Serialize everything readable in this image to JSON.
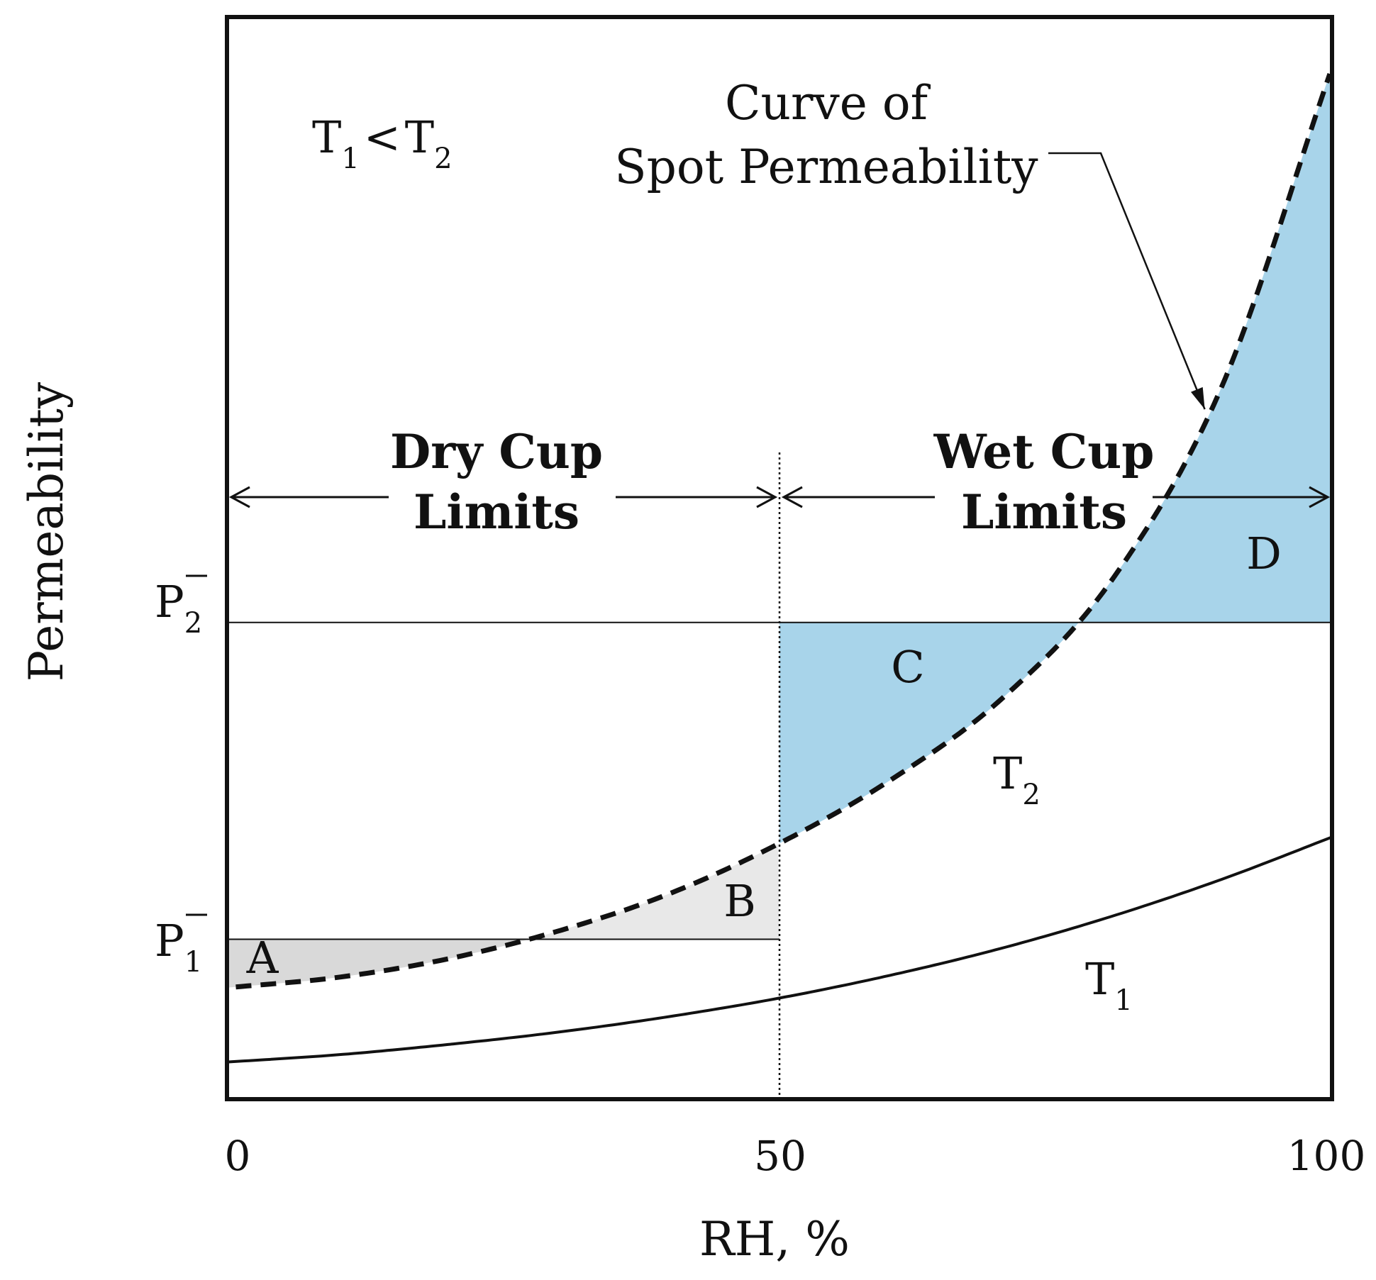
{
  "chart_data": {
    "type": "line",
    "title": "",
    "xlabel": "RH, %",
    "ylabel": "Permeability",
    "xlim": [
      0,
      100
    ],
    "ylim": [
      0,
      1
    ],
    "x_ticks": [
      "0",
      "50",
      "100"
    ],
    "grid": false,
    "condition_label": {
      "main_a": "T",
      "sub_a": "1",
      "op": "<",
      "main_b": "T",
      "sub_b": "2"
    },
    "reference_lines": [
      {
        "name": "P2",
        "letter": "P",
        "sub": "2",
        "value": 0.462
      },
      {
        "name": "P1",
        "letter": "P",
        "sub": "1",
        "value": 0.155
      }
    ],
    "series": [
      {
        "name": "T2",
        "label_main": "T",
        "label_sub": "2",
        "style": "dashed",
        "description": "Curve of Spot Permeability",
        "x": [
          0,
          10,
          20,
          30,
          40,
          50,
          60,
          70,
          80,
          90,
          100
        ],
        "y": [
          0.108,
          0.118,
          0.136,
          0.163,
          0.199,
          0.248,
          0.309,
          0.387,
          0.502,
          0.69,
          1.0
        ]
      },
      {
        "name": "T1",
        "label_main": "T",
        "label_sub": "1",
        "style": "solid",
        "x": [
          0,
          10,
          20,
          30,
          40,
          50,
          60,
          70,
          80,
          90,
          100
        ],
        "y": [
          0.036,
          0.043,
          0.053,
          0.065,
          0.08,
          0.098,
          0.12,
          0.146,
          0.177,
          0.213,
          0.254
        ]
      }
    ],
    "ranges": [
      {
        "name": "dry",
        "line1": "Dry Cup",
        "line2": "Limits",
        "x_start": 0,
        "x_end": 50
      },
      {
        "name": "wet",
        "line1": "Wet Cup",
        "line2": "Limits",
        "x_start": 50,
        "x_end": 100
      }
    ],
    "regions": [
      {
        "label": "A",
        "color": "#d9d9d9"
      },
      {
        "label": "B",
        "color": "#e8e8e8"
      },
      {
        "label": "C",
        "color": "#a8d4ea"
      },
      {
        "label": "D",
        "color": "#a8d4ea"
      }
    ],
    "annotations": [
      {
        "text_line1": "Curve of",
        "text_line2": "Spot Permeability",
        "target_series": "T2",
        "target_x": 89
      }
    ]
  }
}
